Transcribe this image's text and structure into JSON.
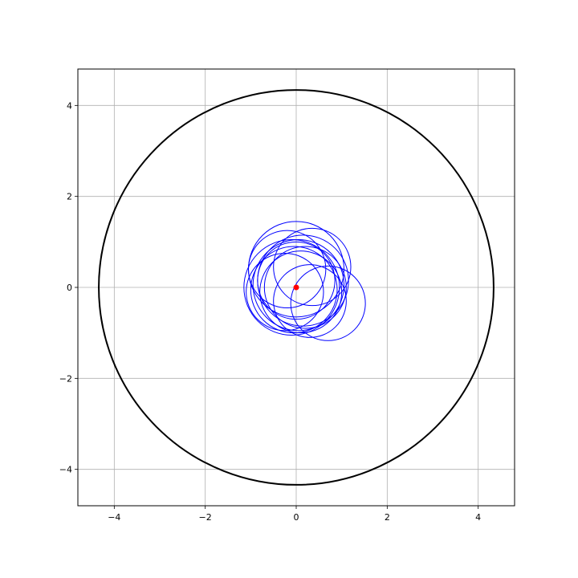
{
  "chart_data": {
    "type": "scatter",
    "title": "",
    "xlabel": "",
    "ylabel": "",
    "xlim": [
      -4.8,
      4.8
    ],
    "ylim": [
      -4.8,
      4.8
    ],
    "grid": true,
    "aspect": "equal",
    "x_ticks": [
      -4,
      -2,
      0,
      2,
      4
    ],
    "y_ticks": [
      -4,
      -2,
      0,
      2,
      4
    ],
    "x_tick_labels": [
      "−4",
      "−2",
      "0",
      "2",
      "4"
    ],
    "y_tick_labels": [
      "−4",
      "−2",
      "0",
      "2",
      "4"
    ],
    "boundary_circle": {
      "cx": 0,
      "cy": 0,
      "r": 4.34,
      "color": "#000000"
    },
    "center_point": {
      "x": 0,
      "y": 0,
      "color": "#ff0000"
    },
    "small_circles": {
      "color": "#0000ff",
      "items": [
        {
          "cx": 0.0,
          "cy": 0.4,
          "r": 1.05
        },
        {
          "cx": 0.35,
          "cy": 0.45,
          "r": 0.85
        },
        {
          "cx": -0.2,
          "cy": 0.4,
          "r": 0.85
        },
        {
          "cx": -0.1,
          "cy": 0.0,
          "r": 1.05
        },
        {
          "cx": 0.2,
          "cy": 0.0,
          "r": 0.9
        },
        {
          "cx": 0.05,
          "cy": 0.05,
          "r": 1.0
        },
        {
          "cx": -0.05,
          "cy": -0.05,
          "r": 0.95
        },
        {
          "cx": 0.1,
          "cy": -0.1,
          "r": 0.9
        },
        {
          "cx": 0.0,
          "cy": 0.15,
          "r": 0.85
        },
        {
          "cx": 0.15,
          "cy": 0.15,
          "r": 1.0
        },
        {
          "cx": 0.7,
          "cy": -0.35,
          "r": 0.82
        },
        {
          "cx": 0.3,
          "cy": -0.3,
          "r": 0.8
        },
        {
          "cx": -0.25,
          "cy": -0.1,
          "r": 0.85
        }
      ]
    }
  }
}
